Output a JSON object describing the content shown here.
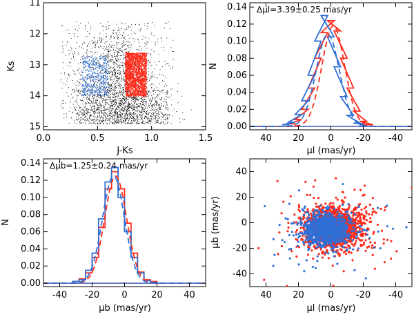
{
  "colors": {
    "red": "#ff2a1a",
    "blue": "#2f6fd6",
    "black": "#000000"
  },
  "chart_data": [
    {
      "id": "cmd",
      "type": "scatter",
      "title": "",
      "xlabel": "J-Ks",
      "ylabel": "Ks",
      "xlim": [
        0.0,
        1.5
      ],
      "ylim": [
        15.1,
        11.0
      ],
      "xticks": [
        "0.0",
        "0.5",
        "1.0",
        "1.5"
      ],
      "xtick_values": [
        0.0,
        0.5,
        1.0,
        1.5
      ],
      "yticks": [
        "11",
        "12",
        "13",
        "14",
        "15"
      ],
      "ytick_values": [
        11,
        12,
        13,
        14,
        15
      ],
      "series": [
        {
          "name": "field stars",
          "color": "black",
          "region": {
            "x": [
              0.15,
              1.2
            ],
            "y": [
              11.6,
              14.9
            ]
          }
        },
        {
          "name": "blue selection",
          "color": "blue",
          "region": {
            "x": [
              0.35,
              0.6
            ],
            "y": [
              12.7,
              14.0
            ]
          }
        },
        {
          "name": "red selection",
          "color": "red",
          "region": {
            "x": [
              0.75,
              0.95
            ],
            "y": [
              12.6,
              14.0
            ]
          }
        }
      ]
    },
    {
      "id": "hist_l",
      "type": "line",
      "title": "",
      "annotation": "Δμl=3.39±0.25 mas/yr",
      "xlabel": "μl (mas/yr)",
      "ylabel": "N",
      "xlim": [
        50,
        -50
      ],
      "ylim": [
        -0.004,
        0.145
      ],
      "xticks": [
        "40",
        "20",
        "0",
        "-20",
        "-40"
      ],
      "xtick_values": [
        40,
        20,
        0,
        -20,
        -40
      ],
      "yticks": [
        "0.00",
        "0.02",
        "0.04",
        "0.06",
        "0.08",
        "0.10",
        "0.12",
        "0.14"
      ],
      "ytick_values": [
        0,
        0.02,
        0.04,
        0.06,
        0.08,
        0.1,
        0.12,
        0.14
      ],
      "series": [
        {
          "name": "red histogram",
          "color": "red",
          "kind": "step",
          "bins_center": [
            24,
            20,
            16,
            12,
            8,
            4,
            0,
            -4,
            -8,
            -12,
            -16,
            -20,
            -24
          ],
          "values": [
            0.003,
            0.008,
            0.02,
            0.045,
            0.08,
            0.11,
            0.124,
            0.112,
            0.08,
            0.045,
            0.018,
            0.006,
            0.002
          ]
        },
        {
          "name": "blue histogram",
          "color": "blue",
          "kind": "step",
          "bins_center": [
            28,
            24,
            20,
            16,
            12,
            8,
            4,
            0,
            -4,
            -8,
            -12,
            -16,
            -20
          ],
          "values": [
            0.002,
            0.005,
            0.014,
            0.03,
            0.06,
            0.1,
            0.13,
            0.105,
            0.07,
            0.035,
            0.013,
            0.004,
            0.002
          ]
        },
        {
          "name": "red gaussian fit",
          "color": "red",
          "kind": "gauss",
          "mu": -1.5,
          "sigma": 7.0,
          "amp": 0.118
        },
        {
          "name": "blue gaussian fit",
          "color": "blue",
          "kind": "gauss",
          "mu": 1.9,
          "sigma": 7.2,
          "amp": 0.108
        }
      ]
    },
    {
      "id": "hist_b",
      "type": "line",
      "title": "",
      "annotation": "Δμb=1.25±0.24 mas/yr",
      "xlabel": "μb (mas/yr)",
      "ylabel": "N",
      "xlim": [
        -50,
        50
      ],
      "ylim": [
        -0.004,
        0.145
      ],
      "xticks": [
        "-40",
        "-20",
        "0",
        "20",
        "40"
      ],
      "xtick_values": [
        -40,
        -20,
        0,
        20,
        40
      ],
      "yticks": [
        "0.00",
        "0.02",
        "0.04",
        "0.06",
        "0.08",
        "0.10",
        "0.12",
        "0.14"
      ],
      "ytick_values": [
        0,
        0.02,
        0.04,
        0.06,
        0.08,
        0.1,
        0.12,
        0.14
      ],
      "series": [
        {
          "name": "red histogram",
          "color": "red",
          "kind": "step",
          "bins_center": [
            -30,
            -26,
            -22,
            -18,
            -14,
            -10,
            -6,
            -2,
            2,
            6,
            10,
            14,
            18
          ],
          "values": [
            0.002,
            0.005,
            0.012,
            0.03,
            0.065,
            0.11,
            0.13,
            0.11,
            0.07,
            0.035,
            0.013,
            0.004,
            0.002
          ]
        },
        {
          "name": "blue histogram",
          "color": "blue",
          "kind": "step",
          "bins_center": [
            -30,
            -26,
            -22,
            -18,
            -14,
            -10,
            -6,
            -2,
            2,
            6,
            10,
            14,
            18
          ],
          "values": [
            0.002,
            0.004,
            0.015,
            0.035,
            0.075,
            0.118,
            0.135,
            0.1,
            0.06,
            0.03,
            0.012,
            0.003,
            0.001
          ]
        },
        {
          "name": "red gaussian fit",
          "color": "red",
          "kind": "gauss",
          "mu": -5.5,
          "sigma": 6.8,
          "amp": 0.125
        },
        {
          "name": "blue gaussian fit",
          "color": "blue",
          "kind": "gauss",
          "mu": -6.8,
          "sigma": 6.8,
          "amp": 0.125
        }
      ]
    },
    {
      "id": "pm_scatter",
      "type": "scatter",
      "title": "",
      "xlabel": "μl (mas/yr)",
      "ylabel": "μb (mas/yr)",
      "xlim": [
        50,
        -50
      ],
      "ylim": [
        -50,
        50
      ],
      "xticks": [
        "40",
        "20",
        "0",
        "-20",
        "-40"
      ],
      "xtick_values": [
        40,
        20,
        0,
        -20,
        -40
      ],
      "yticks": [
        "-40",
        "-20",
        "0",
        "20",
        "40"
      ],
      "ytick_values": [
        -40,
        -20,
        0,
        20,
        40
      ],
      "series": [
        {
          "name": "red stars",
          "color": "red",
          "center": [
            -2,
            -4
          ],
          "spread": [
            12,
            11
          ]
        },
        {
          "name": "blue stars",
          "color": "blue",
          "center": [
            2,
            -5
          ],
          "spread": [
            10,
            9
          ]
        }
      ]
    }
  ]
}
